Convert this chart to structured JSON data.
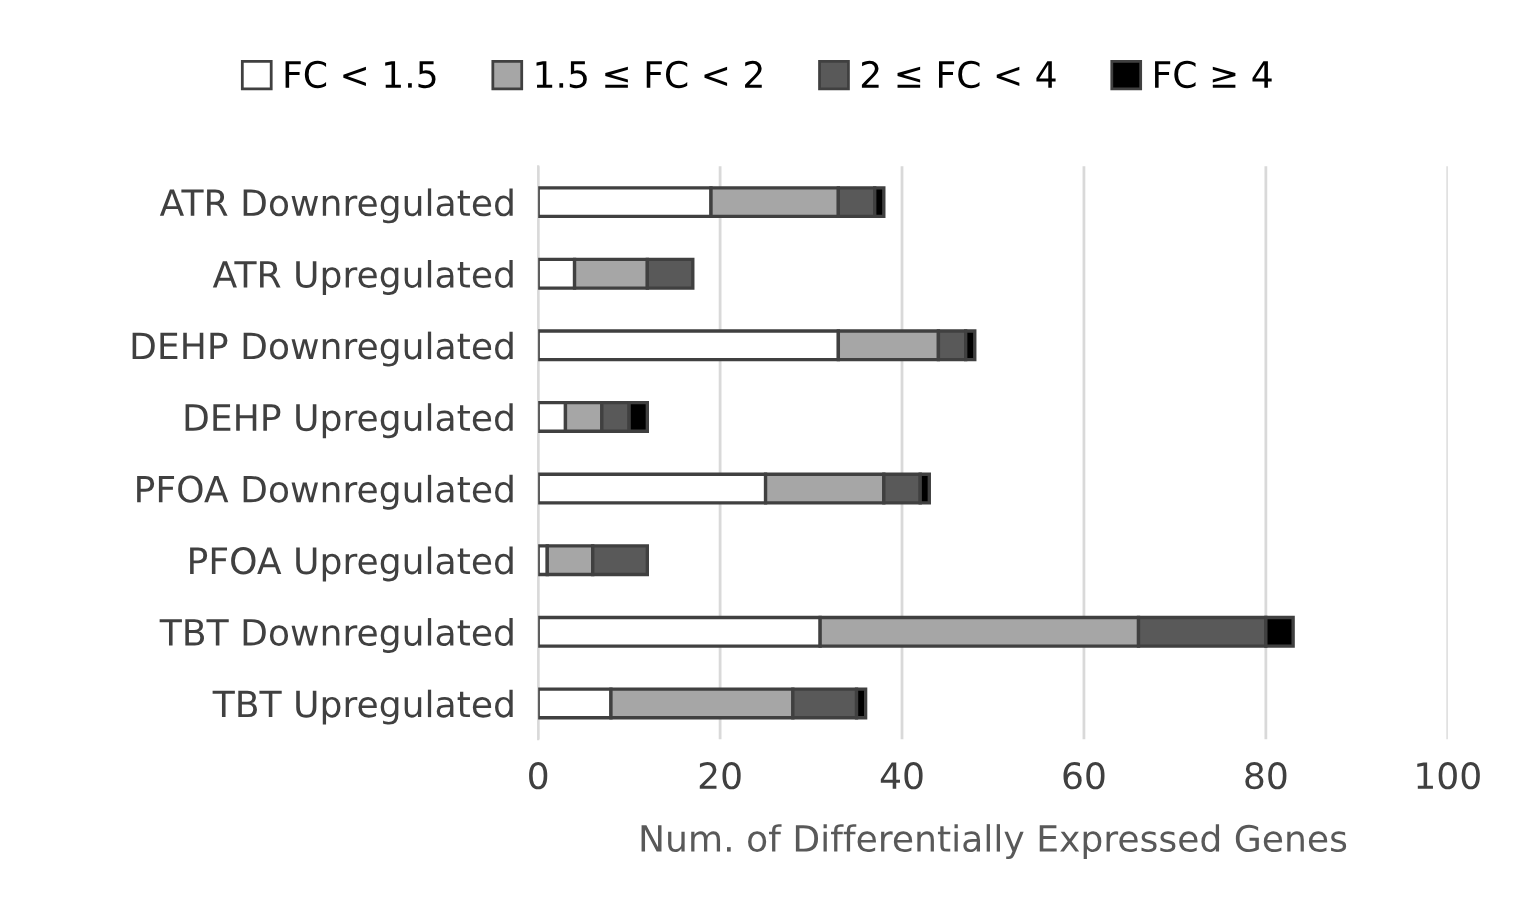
{
  "chart_data": {
    "type": "bar",
    "orientation": "horizontal",
    "stacked": true,
    "xlabel": "Num. of Differentially Expressed Genes",
    "categories": [
      "ATR Downregulated",
      "ATR Upregulated",
      "DEHP Downregulated",
      "DEHP Upregulated",
      "PFOA Downregulated",
      "PFOA Upregulated",
      "TBT Downregulated",
      "TBT Upregulated"
    ],
    "series": [
      {
        "name": "FC < 1.5",
        "color": "#ffffff",
        "values": [
          19,
          4,
          33,
          3,
          25,
          1,
          31,
          8
        ]
      },
      {
        "name": "1.5 ≤ FC < 2",
        "color": "#a6a6a6",
        "values": [
          14,
          8,
          11,
          4,
          13,
          5,
          35,
          20
        ]
      },
      {
        "name": "2 ≤ FC < 4",
        "color": "#595959",
        "values": [
          4,
          5,
          3,
          3,
          4,
          6,
          14,
          7
        ]
      },
      {
        "name": "FC ≥ 4",
        "color": "#000000",
        "values": [
          1,
          0,
          1,
          2,
          1,
          0,
          3,
          1
        ]
      }
    ],
    "xlim": [
      0,
      100
    ],
    "xticks": [
      0,
      20,
      40,
      60,
      80,
      100
    ],
    "grid": "x",
    "legend": "top"
  }
}
